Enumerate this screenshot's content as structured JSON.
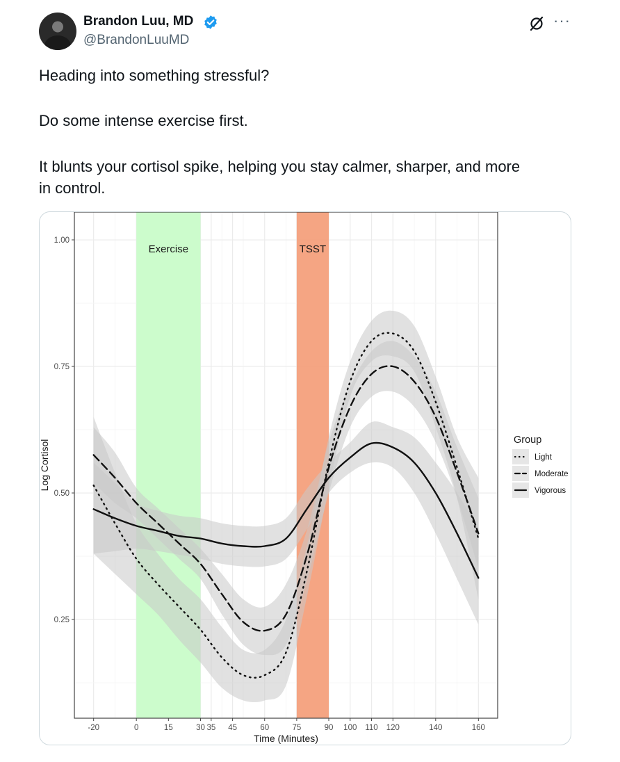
{
  "tweet": {
    "author_name": "Brandon Luu, MD",
    "handle": "@BrandonLuuMD",
    "lines": [
      "Heading into something stressful?",
      "Do some intense exercise first.",
      "It blunts your cortisol spike, helping you stay calmer, sharper, and more",
      "in control."
    ]
  },
  "colors": {
    "verified": "#1d9bf0",
    "exercise_band": "#ccfccc",
    "tsst_band": "#f4a07c",
    "ribbon": "#c8c8c8"
  },
  "icons": {
    "verified": "verified-badge-icon",
    "grok": "grok-icon",
    "more": "more-icon"
  },
  "chart_data": {
    "type": "line",
    "xlabel": "Time (Minutes)",
    "ylabel": "Log Cortisol",
    "xlim": [
      -29,
      169
    ],
    "ylim": [
      0.055,
      1.055
    ],
    "x_ticks": [
      -20,
      0,
      15,
      30,
      35,
      45,
      60,
      75,
      90,
      100,
      110,
      120,
      140,
      160
    ],
    "y_ticks": [
      0.25,
      0.5,
      0.75,
      1.0
    ],
    "y_tick_labels": [
      "0.25",
      "0.50",
      "0.75",
      "1.00"
    ],
    "shaded_regions": [
      {
        "label": "Exercise",
        "x_start": 0,
        "x_end": 30
      },
      {
        "label": "TSST",
        "x_start": 75,
        "x_end": 90
      }
    ],
    "legend_title": "Group",
    "legend_position": "right",
    "grid": true,
    "series": [
      {
        "name": "Light",
        "line_style": "dotted",
        "x": [
          -20,
          -10,
          0,
          10,
          20,
          30,
          40,
          50,
          60,
          70,
          80,
          90,
          100,
          110,
          120,
          130,
          140,
          150,
          160
        ],
        "y": [
          0.515,
          0.44,
          0.37,
          0.32,
          0.275,
          0.23,
          0.175,
          0.14,
          0.14,
          0.185,
          0.35,
          0.56,
          0.72,
          0.8,
          0.815,
          0.78,
          0.68,
          0.55,
          0.41
        ],
        "band_low": [
          0.38,
          0.34,
          0.3,
          0.26,
          0.21,
          0.165,
          0.115,
          0.09,
          0.09,
          0.12,
          0.3,
          0.51,
          0.69,
          0.76,
          0.77,
          0.74,
          0.63,
          0.49,
          0.29
        ],
        "band_high": [
          0.65,
          0.54,
          0.44,
          0.38,
          0.33,
          0.29,
          0.235,
          0.19,
          0.19,
          0.25,
          0.4,
          0.61,
          0.76,
          0.84,
          0.86,
          0.83,
          0.73,
          0.61,
          0.53
        ]
      },
      {
        "name": "Moderate",
        "line_style": "dashed",
        "x": [
          -20,
          -10,
          0,
          10,
          20,
          30,
          40,
          50,
          60,
          70,
          80,
          90,
          100,
          110,
          120,
          130,
          140,
          150,
          160
        ],
        "y": [
          0.575,
          0.53,
          0.48,
          0.44,
          0.4,
          0.36,
          0.3,
          0.245,
          0.228,
          0.26,
          0.38,
          0.55,
          0.67,
          0.735,
          0.75,
          0.72,
          0.65,
          0.54,
          0.42
        ],
        "band_low": [
          0.52,
          0.48,
          0.45,
          0.41,
          0.37,
          0.33,
          0.26,
          0.2,
          0.18,
          0.2,
          0.33,
          0.5,
          0.63,
          0.69,
          0.7,
          0.67,
          0.6,
          0.49,
          0.35
        ],
        "band_high": [
          0.63,
          0.58,
          0.51,
          0.47,
          0.43,
          0.39,
          0.34,
          0.29,
          0.275,
          0.32,
          0.43,
          0.6,
          0.71,
          0.78,
          0.8,
          0.77,
          0.7,
          0.59,
          0.49
        ]
      },
      {
        "name": "Vigorous",
        "line_style": "solid",
        "x": [
          -20,
          -10,
          0,
          10,
          20,
          30,
          40,
          50,
          60,
          70,
          80,
          90,
          100,
          110,
          120,
          130,
          140,
          150,
          160
        ],
        "y": [
          0.468,
          0.45,
          0.435,
          0.425,
          0.415,
          0.41,
          0.4,
          0.395,
          0.395,
          0.41,
          0.47,
          0.53,
          0.57,
          0.598,
          0.59,
          0.56,
          0.5,
          0.42,
          0.332
        ],
        "band_low": [
          0.38,
          0.385,
          0.39,
          0.385,
          0.378,
          0.37,
          0.36,
          0.355,
          0.355,
          0.37,
          0.43,
          0.5,
          0.54,
          0.56,
          0.55,
          0.5,
          0.42,
          0.33,
          0.24
        ],
        "band_high": [
          0.56,
          0.52,
          0.48,
          0.465,
          0.455,
          0.45,
          0.44,
          0.435,
          0.435,
          0.45,
          0.51,
          0.56,
          0.6,
          0.64,
          0.63,
          0.61,
          0.56,
          0.5,
          0.43
        ]
      }
    ]
  }
}
